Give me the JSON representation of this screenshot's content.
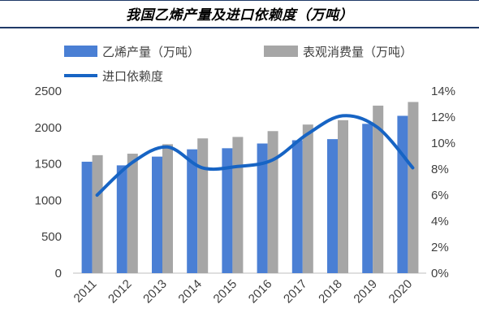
{
  "chart_data": {
    "type": "bar",
    "title": "我国乙烯产量及进口依赖度（万吨）",
    "categories": [
      "2011",
      "2012",
      "2013",
      "2014",
      "2015",
      "2016",
      "2017",
      "2018",
      "2019",
      "2020"
    ],
    "series": [
      {
        "name": "乙烯产量（万吨）",
        "kind": "bar",
        "axis": "left",
        "color": "#4a7fd4",
        "values": [
          1530,
          1480,
          1600,
          1700,
          1715,
          1780,
          1825,
          1840,
          2050,
          2160
        ]
      },
      {
        "name": "表观消费量（万吨）",
        "kind": "bar",
        "axis": "left",
        "color": "#a6a6a6",
        "values": [
          1620,
          1640,
          1770,
          1850,
          1870,
          1950,
          2040,
          2100,
          2300,
          2350
        ]
      },
      {
        "name": "进口依赖度",
        "kind": "line",
        "axis": "right",
        "color": "#1764c4",
        "values": [
          0.06,
          0.085,
          0.097,
          0.081,
          0.082,
          0.087,
          0.107,
          0.121,
          0.112,
          0.081
        ]
      }
    ],
    "y_left": {
      "min": 0,
      "max": 2500,
      "step": 500,
      "tick_labels": [
        "0",
        "500",
        "1000",
        "1500",
        "2000",
        "2500"
      ]
    },
    "y_right": {
      "min": 0,
      "max": 0.14,
      "step": 0.02,
      "tick_labels": [
        "0%",
        "2%",
        "4%",
        "6%",
        "8%",
        "10%",
        "12%",
        "14%"
      ]
    },
    "grid": false,
    "legend": "top"
  }
}
